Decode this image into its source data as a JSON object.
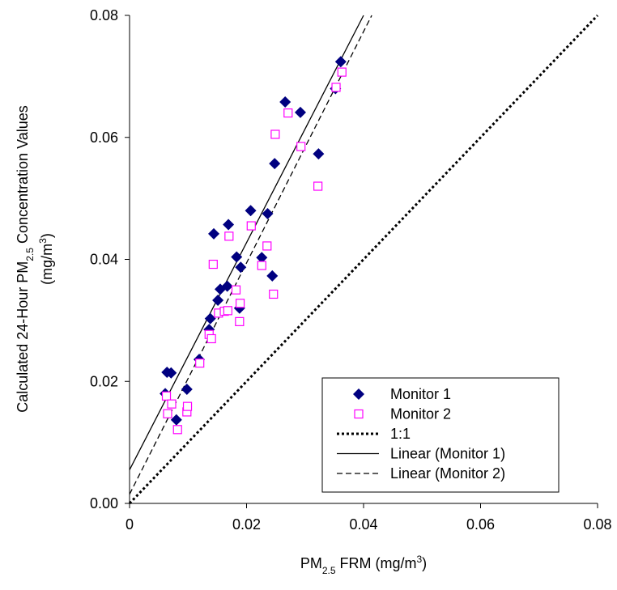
{
  "chart_data": {
    "type": "scatter",
    "xlabel": [
      {
        "text": "PM"
      },
      {
        "text": "2.5",
        "script": "sub"
      },
      {
        "text": " FRM (mg/m"
      },
      {
        "text": "3",
        "script": "super"
      },
      {
        "text": ")"
      }
    ],
    "ylabel": [
      [
        {
          "text": "Calculated 24-Hour PM"
        },
        {
          "text": "2.5",
          "script": "sub"
        },
        {
          "text": " Concentration Values"
        }
      ],
      [
        {
          "text": "(mg/m"
        },
        {
          "text": "3",
          "script": "super"
        },
        {
          "text": ")"
        }
      ]
    ],
    "xlim": [
      0,
      0.08
    ],
    "ylim": [
      0,
      0.08
    ],
    "xticks": [
      0,
      0.02,
      0.04,
      0.06,
      0.08
    ],
    "yticks": [
      {
        "value": 0,
        "label": "0.00"
      },
      0.02,
      0.04,
      0.06,
      0.08
    ],
    "legend": "lower right",
    "series": [
      {
        "name": "Monitor 1",
        "color": "#000080",
        "marker": "diamond",
        "x": [
          0.0061,
          0.0064,
          0.0071,
          0.008,
          0.0098,
          0.0119,
          0.0136,
          0.0138,
          0.0144,
          0.0151,
          0.0155,
          0.0167,
          0.0169,
          0.0183,
          0.0188,
          0.019,
          0.0207,
          0.0226,
          0.0236,
          0.0244,
          0.0248,
          0.0266,
          0.0292,
          0.0323,
          0.0352,
          0.0361
        ],
        "values": [
          0.018,
          0.0215,
          0.0214,
          0.0137,
          0.0187,
          0.0236,
          0.0285,
          0.0303,
          0.0442,
          0.0333,
          0.0351,
          0.0356,
          0.0457,
          0.0404,
          0.032,
          0.0387,
          0.048,
          0.0403,
          0.0475,
          0.0373,
          0.0557,
          0.0658,
          0.0641,
          0.0573,
          0.068,
          0.0724
        ]
      },
      {
        "name": "Monitor 2",
        "color": "#ff00ff",
        "marker": "square",
        "x": [
          0.0063,
          0.0065,
          0.0072,
          0.0082,
          0.0098,
          0.0099,
          0.012,
          0.0136,
          0.014,
          0.0143,
          0.0152,
          0.0162,
          0.0168,
          0.017,
          0.0182,
          0.0188,
          0.0189,
          0.0208,
          0.0226,
          0.0235,
          0.0246,
          0.0249,
          0.0271,
          0.0293,
          0.0322,
          0.0353,
          0.0363
        ],
        "values": [
          0.0176,
          0.0147,
          0.0163,
          0.0121,
          0.015,
          0.0159,
          0.023,
          0.0277,
          0.027,
          0.0392,
          0.0312,
          0.0315,
          0.0316,
          0.0438,
          0.035,
          0.0298,
          0.0328,
          0.0455,
          0.039,
          0.0422,
          0.0343,
          0.0605,
          0.064,
          0.0585,
          0.052,
          0.0682,
          0.0707
        ]
      },
      {
        "name": "1:1",
        "color": "#000000",
        "line_style": "dotted",
        "x": [
          0,
          0.08
        ],
        "values": [
          0,
          0.08
        ]
      },
      {
        "name": "Linear (Monitor 1)",
        "color": "#000000",
        "line_style": "solid",
        "x": [
          0,
          0.04
        ],
        "values": [
          0.0055,
          0.08
        ]
      },
      {
        "name": "Linear (Monitor 2)",
        "color": "#000000",
        "line_style": "dashed",
        "x": [
          0,
          0.0414
        ],
        "values": [
          0.0015,
          0.08
        ]
      }
    ]
  }
}
